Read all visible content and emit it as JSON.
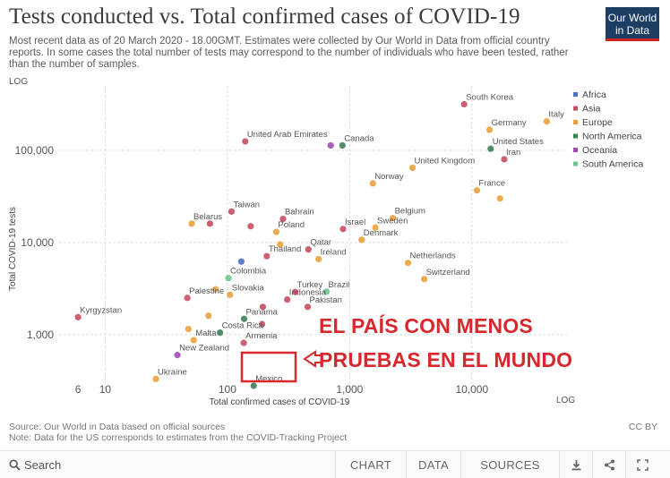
{
  "header": {
    "title": "Tests conducted vs. Total confirmed cases of COVID-19",
    "subtitle": "Most recent data as of 20 March 2020 - 18.00GMT. Estimates were collected by Our World in Data from official country reports. In some cases the total number of tests may correspond to the number of individuals who have been tested, rather than the number of samples.",
    "logo_line1": "Our World",
    "logo_line2": "in Data"
  },
  "chart_data": {
    "type": "scatter",
    "title": "Tests conducted vs. Total confirmed cases of COVID-19",
    "xlabel": "Total confirmed cases of COVID-19",
    "ylabel": "Total COVID-19 tests",
    "x_scale_label": "LOG",
    "y_scale_label": "LOG",
    "x_scale": "log",
    "y_scale": "log",
    "xlim": [
      4.2,
      60000
    ],
    "ylim": [
      260,
      500000
    ],
    "x_ticks": [
      {
        "value": 6,
        "label": "6"
      },
      {
        "value": 10,
        "label": "10"
      },
      {
        "value": 100,
        "label": "100"
      },
      {
        "value": 1000,
        "label": "1,000"
      },
      {
        "value": 10000,
        "label": "10,000"
      }
    ],
    "y_ticks": [
      {
        "value": 1000,
        "label": "1,000"
      },
      {
        "value": 10000,
        "label": "10,000"
      },
      {
        "value": 100000,
        "label": "100,000"
      }
    ],
    "grid": true,
    "legend_position": "right",
    "legend": [
      {
        "name": "Africa",
        "color": "#4e6ec8"
      },
      {
        "name": "Asia",
        "color": "#c54f62"
      },
      {
        "name": "Europe",
        "color": "#e9a23b"
      },
      {
        "name": "North America",
        "color": "#3f7f55"
      },
      {
        "name": "Oceania",
        "color": "#a24bb5"
      },
      {
        "name": "South America",
        "color": "#6fc58d"
      }
    ],
    "points": [
      {
        "label": "South Korea",
        "region": "Asia",
        "x": 8650,
        "y": 316000
      },
      {
        "label": "Italy",
        "region": "Europe",
        "x": 41000,
        "y": 206000
      },
      {
        "label": "Germany",
        "region": "Europe",
        "x": 13960,
        "y": 167000
      },
      {
        "label": "United States",
        "region": "North America",
        "x": 14250,
        "y": 103945
      },
      {
        "label": "Iran",
        "region": "Asia",
        "x": 18407,
        "y": 80000
      },
      {
        "label": "United Kingdom",
        "region": "Europe",
        "x": 3269,
        "y": 64621
      },
      {
        "label": "Norway",
        "region": "Europe",
        "x": 1550,
        "y": 43735
      },
      {
        "label": "France",
        "region": "Europe",
        "x": 10995,
        "y": 36747
      },
      {
        "label": "",
        "region": "Europe",
        "x": 17000,
        "y": 30000
      },
      {
        "label": "United Arab Emirates",
        "region": "Asia",
        "x": 140,
        "y": 125000
      },
      {
        "label": "Canada",
        "region": "North America",
        "x": 873,
        "y": 113000
      },
      {
        "label": "",
        "region": "Oceania",
        "x": 700,
        "y": 113000
      },
      {
        "label": "Taiwan",
        "region": "Asia",
        "x": 108,
        "y": 21640
      },
      {
        "label": "Bahrain",
        "region": "Asia",
        "x": 285,
        "y": 18000
      },
      {
        "label": "Belarus",
        "region": "Europe",
        "x": 51,
        "y": 16000
      },
      {
        "label": "",
        "region": "Asia",
        "x": 72,
        "y": 16000
      },
      {
        "label": "",
        "region": "Asia",
        "x": 155,
        "y": 15000
      },
      {
        "label": "Poland",
        "region": "Europe",
        "x": 251,
        "y": 13000
      },
      {
        "label": "Belgium",
        "region": "Europe",
        "x": 2257,
        "y": 18360
      },
      {
        "label": "Sweden",
        "region": "Europe",
        "x": 1623,
        "y": 14500
      },
      {
        "label": "Israel",
        "region": "Asia",
        "x": 883,
        "y": 14000
      },
      {
        "label": "Denmark",
        "region": "Europe",
        "x": 1255,
        "y": 10700
      },
      {
        "label": "Qatar",
        "region": "Asia",
        "x": 460,
        "y": 8400
      },
      {
        "label": "Thailand",
        "region": "Asia",
        "x": 210,
        "y": 7100
      },
      {
        "label": "",
        "region": "Europe",
        "x": 270,
        "y": 9500
      },
      {
        "label": "Ireland",
        "region": "Europe",
        "x": 557,
        "y": 6600
      },
      {
        "label": "",
        "region": "Africa",
        "x": 130,
        "y": 6200
      },
      {
        "label": "Colombia",
        "region": "South America",
        "x": 102,
        "y": 4103
      },
      {
        "label": "Netherlands",
        "region": "Europe",
        "x": 3003,
        "y": 6000
      },
      {
        "label": "Switzerland",
        "region": "Europe",
        "x": 4075,
        "y": 4000
      },
      {
        "label": "Slovakia",
        "region": "Europe",
        "x": 105,
        "y": 2700
      },
      {
        "label": "Palestine",
        "region": "Asia",
        "x": 47,
        "y": 2500
      },
      {
        "label": "Turkey",
        "region": "Asia",
        "x": 359,
        "y": 2900
      },
      {
        "label": "Brazil",
        "region": "South America",
        "x": 647,
        "y": 2927
      },
      {
        "label": "Indonesia",
        "region": "Asia",
        "x": 309,
        "y": 2400
      },
      {
        "label": "Pakistan",
        "region": "Asia",
        "x": 454,
        "y": 2000
      },
      {
        "label": "Panama",
        "region": "North America",
        "x": 137,
        "y": 1480
      },
      {
        "label": "",
        "region": "Asia",
        "x": 195,
        "y": 2000
      },
      {
        "label": "Kyrgyzstan",
        "region": "Asia",
        "x": 6,
        "y": 1545
      },
      {
        "label": "",
        "region": "Europe",
        "x": 80,
        "y": 3100
      },
      {
        "label": "",
        "region": "Europe",
        "x": 70,
        "y": 1600
      },
      {
        "label": "Costa Rica",
        "region": "North America",
        "x": 87,
        "y": 1050
      },
      {
        "label": "Malta",
        "region": "Europe",
        "x": 53,
        "y": 870
      },
      {
        "label": "",
        "region": "Europe",
        "x": 48,
        "y": 1150
      },
      {
        "label": "Armenia",
        "region": "Asia",
        "x": 136,
        "y": 813
      },
      {
        "label": "",
        "region": "Asia",
        "x": 192,
        "y": 1300
      },
      {
        "label": "New Zealand",
        "region": "Oceania",
        "x": 39,
        "y": 600
      },
      {
        "label": "Ukraine",
        "region": "Europe",
        "x": 26,
        "y": 330
      },
      {
        "label": "Mexico",
        "region": "North America",
        "x": 164,
        "y": 278
      }
    ]
  },
  "annotation": {
    "line1": "EL PAÍS CON MENOS",
    "line2": "PRUEBAS EN EL MUNDO",
    "color": "#d8272d"
  },
  "footer": {
    "source": "Source: Our World in Data based on official sources",
    "note": "Note: Data for the US corresponds to estimates from the COVID-Tracking Project",
    "license": "CC BY"
  },
  "toolbar": {
    "search_label": "Search",
    "chart_label": "CHART",
    "data_label": "DATA",
    "sources_label": "SOURCES"
  },
  "icons": {
    "search": "search-icon",
    "download": "download-icon",
    "share": "share-icon",
    "fullscreen": "expand-icon"
  }
}
